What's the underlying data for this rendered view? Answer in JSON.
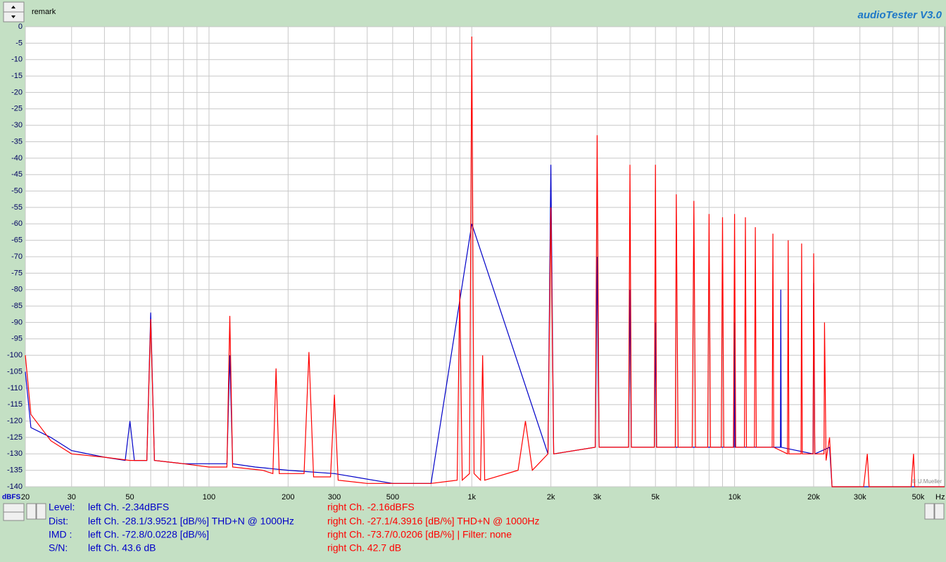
{
  "app": {
    "remark": "remark",
    "title": "audioTester  V3.0",
    "copyright": "© U.Mueller"
  },
  "chart_data": {
    "type": "line",
    "y_label": "dBFS",
    "x_unit": "Hz",
    "log_x": true,
    "grid": true,
    "xlim": [
      20,
      63000
    ],
    "ylim": [
      -140,
      0
    ],
    "xticks": [
      20,
      30,
      50,
      100,
      200,
      300,
      500,
      {
        "value": 1000,
        "label": "1k"
      },
      {
        "value": 2000,
        "label": "2k"
      },
      {
        "value": 3000,
        "label": "3k"
      },
      {
        "value": 5000,
        "label": "5k"
      },
      {
        "value": 10000,
        "label": "10k"
      },
      {
        "value": 20000,
        "label": "20k"
      },
      {
        "value": 30000,
        "label": "30k"
      },
      {
        "value": 50000,
        "label": "50k"
      }
    ],
    "x_minor_ticks": [
      40,
      60,
      70,
      80,
      90,
      400,
      600,
      700,
      800,
      900,
      4000,
      6000,
      7000,
      8000,
      9000,
      40000,
      60000
    ],
    "yticks": [
      0,
      -5,
      -10,
      -15,
      -20,
      -25,
      -30,
      -35,
      -40,
      -45,
      -50,
      -55,
      -60,
      -65,
      -70,
      -75,
      -80,
      -85,
      -90,
      -95,
      -100,
      -105,
      -110,
      -115,
      -120,
      -125,
      -130,
      -135,
      -140
    ],
    "series": [
      {
        "color": "#0000c8",
        "x": [
          20,
          21,
          25,
          30,
          40,
          48,
          50,
          52,
          58,
          60,
          62,
          80,
          100,
          117,
          120,
          123,
          150,
          200,
          300,
          500,
          700,
          1000,
          1950,
          2000,
          2050,
          2950,
          3000,
          3050,
          3950,
          4000,
          4050,
          4950,
          5000,
          5050,
          9950,
          10000,
          10050,
          14950,
          15000,
          15050,
          19900,
          20000,
          20200,
          23000,
          23500,
          63000
        ],
        "values": [
          -105,
          -122,
          -125,
          -129,
          -131,
          -132,
          -120,
          -132,
          -132,
          -87,
          -132,
          -133,
          -133,
          -133,
          -100,
          -133,
          -134,
          -135,
          -136,
          -139,
          -139,
          -60,
          -130,
          -42,
          -130,
          -128,
          -70,
          -128,
          -128,
          -80,
          -128,
          -128,
          -90,
          -128,
          -128,
          -90,
          -128,
          -128,
          -80,
          -128,
          -130,
          -78,
          -130,
          -128,
          -140,
          -140
        ]
      },
      {
        "color": "#ff0000",
        "x": [
          20,
          21,
          25,
          30,
          40,
          50,
          58,
          60,
          62,
          80,
          100,
          117,
          120,
          123,
          160,
          175,
          180,
          185,
          230,
          240,
          250,
          290,
          300,
          310,
          400,
          500,
          700,
          880,
          900,
          920,
          980,
          1000,
          1020,
          1080,
          1100,
          1120,
          1500,
          1600,
          1700,
          1950,
          2000,
          2050,
          2950,
          3000,
          3050,
          3950,
          4000,
          4050,
          4950,
          5000,
          5050,
          5950,
          6000,
          6100,
          6900,
          7000,
          7100,
          7900,
          8000,
          8100,
          8900,
          9000,
          9100,
          9900,
          10000,
          10100,
          10900,
          11000,
          11100,
          11900,
          12000,
          12100,
          13900,
          14000,
          14100,
          15900,
          16000,
          16100,
          17900,
          18000,
          18100,
          19900,
          20000,
          20200,
          21900,
          22000,
          22300,
          23000,
          23500,
          30000,
          31000,
          32000,
          32500,
          47000,
          48000,
          48500,
          63000
        ],
        "values": [
          -100,
          -118,
          -126,
          -130,
          -131,
          -132,
          -132,
          -89,
          -132,
          -133,
          -134,
          -134,
          -88,
          -134,
          -135,
          -136,
          -104,
          -136,
          -136,
          -99,
          -137,
          -137,
          -112,
          -138,
          -139,
          -139,
          -139,
          -138,
          -80,
          -138,
          -136,
          -3,
          -136,
          -138,
          -100,
          -138,
          -135,
          -120,
          -135,
          -130,
          -55,
          -130,
          -128,
          -33,
          -128,
          -128,
          -42,
          -128,
          -128,
          -42,
          -128,
          -128,
          -51,
          -128,
          -128,
          -53,
          -128,
          -128,
          -57,
          -128,
          -128,
          -58,
          -128,
          -128,
          -57,
          -128,
          -128,
          -58,
          -128,
          -128,
          -61,
          -128,
          -128,
          -63,
          -128,
          -130,
          -65,
          -130,
          -130,
          -66,
          -130,
          -130,
          -69,
          -130,
          -130,
          -90,
          -132,
          -125,
          -140,
          -140,
          -140,
          -130,
          -140,
          -140,
          -130,
          -140,
          -140
        ]
      }
    ]
  },
  "info": {
    "labels": [
      "Level:",
      "Dist:",
      "IMD  :",
      "S/N:"
    ],
    "left": [
      "left Ch. -2.34dBFS",
      "left Ch. -28.1/3.9521 [dB/%] THD+N  @ 1000Hz",
      "left Ch. -72.8/0.0228 [dB/%]",
      "left Ch. 43.6 dB"
    ],
    "right": [
      "right Ch. -2.16dBFS",
      "right Ch. -27.1/4.3916 [dB/%] THD+N  @ 1000Hz",
      "right Ch. -73.7/0.0206 [dB/%] |   Filter: none",
      "right Ch. 42.7 dB"
    ]
  }
}
